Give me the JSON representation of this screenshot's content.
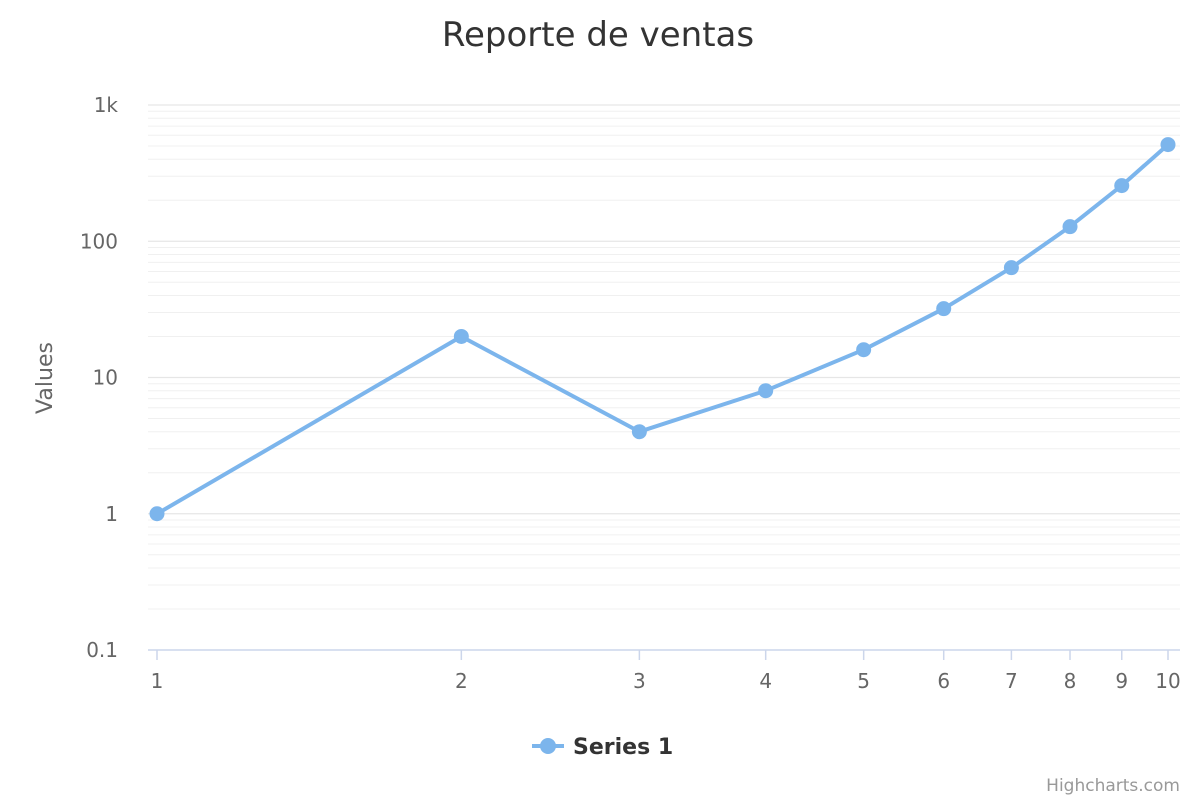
{
  "chart_data": {
    "type": "line",
    "title": "Reporte de ventas",
    "subtitle": "",
    "xlabel": "",
    "ylabel": "Values",
    "x_scale": "log",
    "y_scale": "log",
    "x": [
      1,
      2,
      3,
      4,
      5,
      6,
      7,
      8,
      9,
      10
    ],
    "xlim": [
      1,
      10
    ],
    "ylim": [
      0.1,
      1000
    ],
    "x_ticks": [
      1,
      2,
      3,
      4,
      5,
      6,
      7,
      8,
      9,
      10
    ],
    "x_tick_labels": [
      "1",
      "2",
      "3",
      "4",
      "5",
      "6",
      "7",
      "8",
      "9",
      "10"
    ],
    "y_ticks": [
      0.1,
      1,
      10,
      100,
      1000
    ],
    "y_tick_labels": [
      "0.1",
      "1",
      "10",
      "100",
      "1k"
    ],
    "grid": true,
    "legend_position": "bottom-center",
    "series": [
      {
        "name": "Series 1",
        "color": "#7cb5ec",
        "values": [
          1,
          20,
          4,
          8,
          16,
          32,
          64,
          128,
          256,
          512
        ]
      }
    ]
  },
  "credits": "Highcharts.com"
}
